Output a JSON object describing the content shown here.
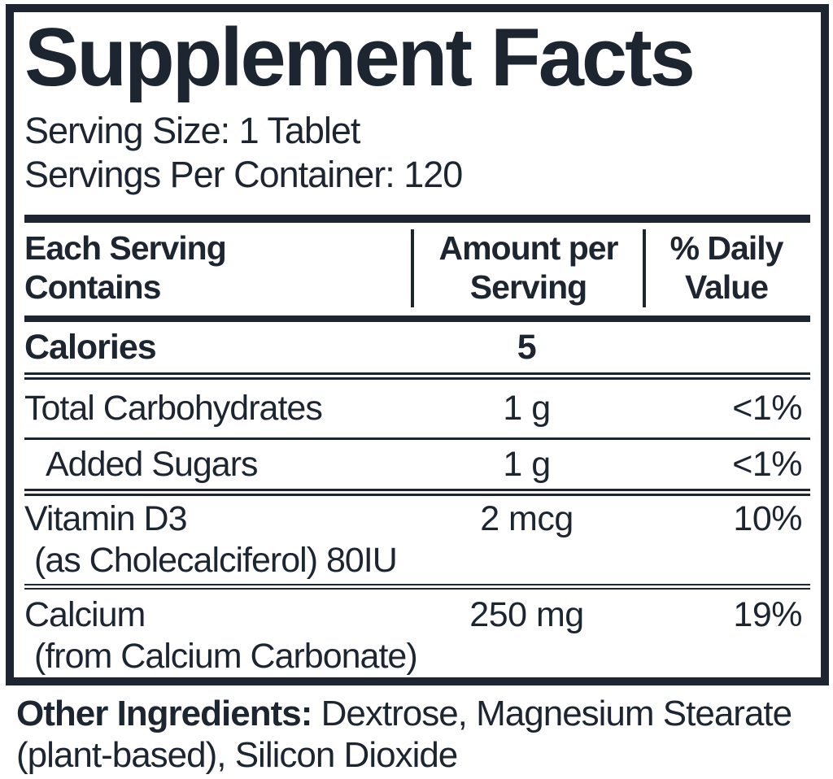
{
  "colors": {
    "ink": "#1d2531",
    "background": "#ffffff"
  },
  "label": {
    "title": "Supplement Facts",
    "serving_size": "Serving Size: 1 Tablet",
    "servings_per_container": "Servings Per Container: 120",
    "table": {
      "header": {
        "col1_line1": "Each Serving",
        "col1_line2": "Contains",
        "col2_line1": "Amount per",
        "col2_line2": "Serving",
        "col3_line1": "% Daily",
        "col3_line2": "Value"
      },
      "rows": [
        {
          "name": "Calories",
          "sub": "",
          "amount": "5",
          "dv": ""
        },
        {
          "name": "Total Carbohydrates",
          "sub": "",
          "amount": "1 g",
          "dv": "<1%"
        },
        {
          "name": "Added Sugars",
          "sub": "",
          "amount": "1 g",
          "dv": "<1%"
        },
        {
          "name": "Vitamin D3",
          "sub": "(as Cholecalciferol) 80IU",
          "amount": "2 mcg",
          "dv": "10%"
        },
        {
          "name": "Calcium",
          "sub": "(from Calcium Carbonate)",
          "amount": "250 mg",
          "dv": "19%"
        }
      ]
    },
    "other_ingredients": {
      "label": "Other Ingredients:",
      "text": "Dextrose, Magnesium Stearate (plant-based), Silicon Dioxide"
    }
  }
}
